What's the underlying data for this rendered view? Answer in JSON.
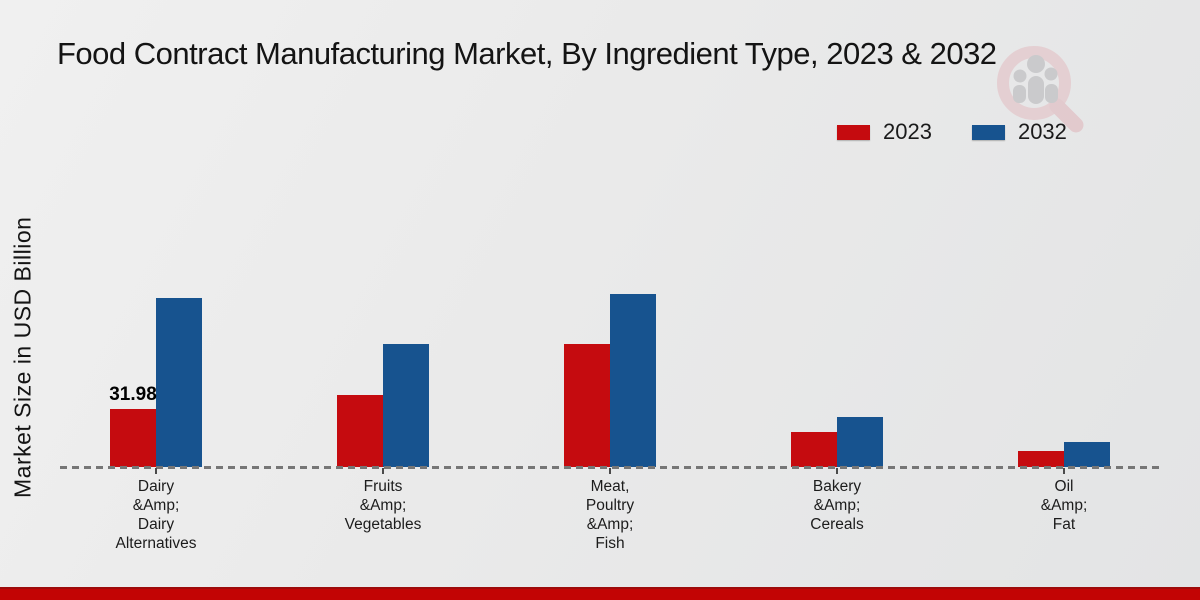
{
  "header": {
    "title": "Food Contract Manufacturing Market, By Ingredient Type, 2023 & 2032"
  },
  "watermark": {
    "name": "market-research-future-logo",
    "ring_color": "#e3bcc1",
    "figure_color": "#b3b3b6"
  },
  "chart_data": {
    "type": "bar",
    "title": "Food Contract Manufacturing Market, By Ingredient Type, 2023 & 2032",
    "xlabel": "",
    "ylabel": "Market Size in USD Billion",
    "ylim": [
      0,
      100
    ],
    "grid": false,
    "legend_position": "top-right",
    "baseline_style": "dashed",
    "categories": [
      "Dairy\n&Amp;\nDairy\nAlternatives",
      "Fruits\n&Amp;\nVegetables",
      "Meat,\nPoultry\n&Amp;\nFish",
      "Bakery\n&Amp;\nCereals",
      "Oil\n&Amp;\nFat"
    ],
    "series": [
      {
        "name": "2023",
        "color": "#c50b0f",
        "values": [
          31.98,
          39.7,
          67.8,
          19.3,
          8.8
        ]
      },
      {
        "name": "2032",
        "color": "#17538f",
        "values": [
          93.2,
          67.8,
          95.4,
          27.6,
          13.8
        ]
      }
    ],
    "annotations": [
      {
        "text": "31.98",
        "series": "2023",
        "category_index": 0
      }
    ]
  },
  "footer": {
    "strip_color": "#c20404"
  }
}
